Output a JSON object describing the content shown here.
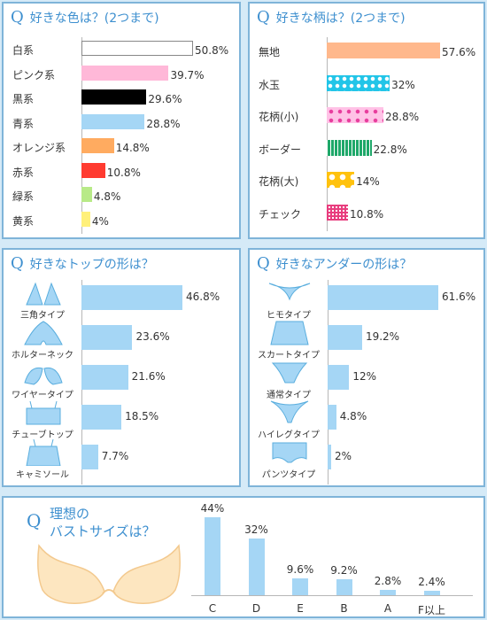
{
  "chart_data": [
    {
      "type": "bar",
      "title": "好きな色は？(2つまで)",
      "categories": [
        "白系",
        "ピンク系",
        "黒系",
        "青系",
        "オレンジ系",
        "赤系",
        "緑系",
        "黄系"
      ],
      "values": [
        50.8,
        39.7,
        29.6,
        28.8,
        14.8,
        10.8,
        4.8,
        4
      ],
      "value_labels": [
        "50.8%",
        "39.7%",
        "29.6%",
        "28.8%",
        "14.8%",
        "10.8%",
        "4.8%",
        "4%"
      ],
      "colors": [
        "#ffffff",
        "#ffb8d8",
        "#000000",
        "#a5d6f5",
        "#ffab60",
        "#ff3b30",
        "#b8ea88",
        "#fff07a"
      ],
      "orientation": "horizontal"
    },
    {
      "type": "bar",
      "title": "好きな柄は？(2つまで)",
      "categories": [
        "無地",
        "水玉",
        "花柄(小)",
        "ボーダー",
        "花柄(大)",
        "チェック"
      ],
      "values": [
        57.6,
        32,
        28.8,
        22.8,
        14,
        10.8
      ],
      "value_labels": [
        "57.6%",
        "32%",
        "28.8%",
        "22.8%",
        "14%",
        "10.8%"
      ],
      "colors": [
        "#ffb88c",
        "#22c5e8",
        "#ffc2e6",
        "#1fa86a",
        "#ffc20e",
        "#e83e7e"
      ],
      "orientation": "horizontal"
    },
    {
      "type": "bar",
      "title": "好きなトップの形は？",
      "categories": [
        "三角タイプ",
        "ホルターネック",
        "ワイヤータイプ",
        "チューブトップ",
        "キャミソール"
      ],
      "values": [
        46.8,
        23.6,
        21.6,
        18.5,
        7.7
      ],
      "value_labels": [
        "46.8%",
        "23.6%",
        "21.6%",
        "18.5%",
        "7.7%"
      ],
      "orientation": "horizontal"
    },
    {
      "type": "bar",
      "title": "好きなアンダーの形は？",
      "categories": [
        "ヒモタイプ",
        "スカートタイプ",
        "通常タイプ",
        "ハイレグタイプ",
        "パンツタイプ"
      ],
      "values": [
        61.6,
        19.2,
        12,
        4.8,
        2
      ],
      "value_labels": [
        "61.6%",
        "19.2%",
        "12%",
        "4.8%",
        "2%"
      ],
      "orientation": "horizontal"
    },
    {
      "type": "bar",
      "title_lines": [
        "理想の",
        "バストサイズは？"
      ],
      "categories": [
        "C",
        "D",
        "E",
        "B",
        "A",
        "F以上"
      ],
      "values": [
        44,
        32,
        9.6,
        9.2,
        2.8,
        2.4
      ],
      "value_labels": [
        "44%",
        "32%",
        "9.6%",
        "9.2%",
        "2.8%",
        "2.4%"
      ],
      "orientation": "vertical"
    }
  ],
  "q_mark": "Q",
  "accent_color": "#3d8fcf",
  "bar_color": "#a5d6f5",
  "icons": {
    "tops": [
      "triangle-bikini-top-icon",
      "halter-neck-top-icon",
      "wire-bikini-top-icon",
      "tube-top-icon",
      "camisole-top-icon"
    ],
    "bottoms": [
      "string-bottom-icon",
      "skirt-bottom-icon",
      "regular-bottom-icon",
      "high-leg-bottom-icon",
      "pants-bottom-icon"
    ],
    "bust": "bra-icon"
  }
}
